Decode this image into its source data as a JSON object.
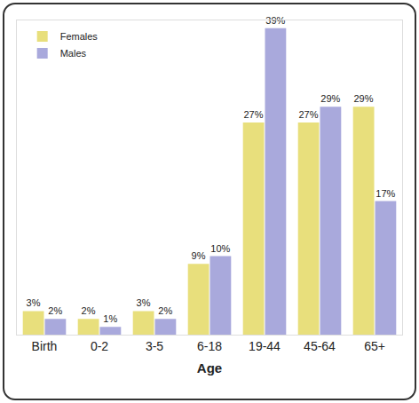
{
  "chart_data": {
    "type": "bar",
    "x_label": "Age",
    "categories": [
      "Birth",
      "0-2",
      "3-5",
      "6-18",
      "19-44",
      "45-64",
      "65+"
    ],
    "series": [
      {
        "name": "Females",
        "color": "#e8df7c",
        "values": [
          3,
          2,
          3,
          9,
          27,
          27,
          29
        ],
        "value_labels": [
          "3%",
          "2%",
          "3%",
          "9%",
          "27%",
          "27%",
          "29%"
        ]
      },
      {
        "name": "Males",
        "color": "#a9a9dc",
        "values": [
          2,
          1,
          2,
          10,
          39,
          29,
          17
        ],
        "value_labels": [
          "2%",
          "1%",
          "2%",
          "10%",
          "39%",
          "29%",
          "17%"
        ]
      }
    ],
    "ylim": [
      0,
      40
    ],
    "data_labels": true,
    "tick_labels": "x",
    "grid": false,
    "legend": "upper left"
  }
}
